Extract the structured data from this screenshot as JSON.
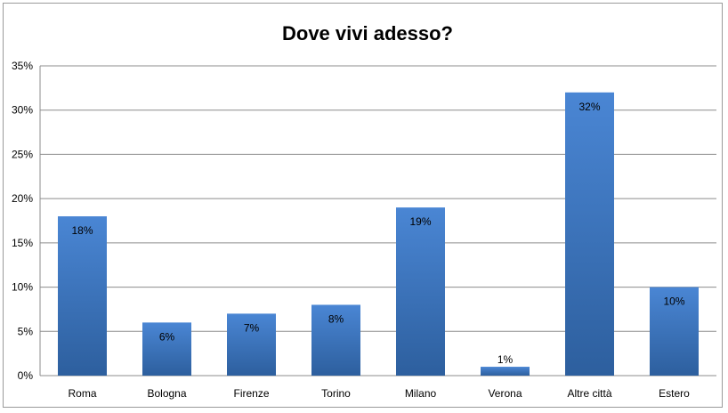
{
  "chart_data": {
    "type": "bar",
    "title": "Dove vivi adesso?",
    "xlabel": "",
    "ylabel": "",
    "categories": [
      "Roma",
      "Bologna",
      "Firenze",
      "Torino",
      "Milano",
      "Verona",
      "Altre città",
      "Estero"
    ],
    "values": [
      18,
      6,
      7,
      8,
      19,
      1,
      32,
      10
    ],
    "data_labels": [
      "18%",
      "6%",
      "7%",
      "8%",
      "19%",
      "1%",
      "32%",
      "10%"
    ],
    "ylim": [
      0,
      35
    ],
    "yticks": [
      0,
      5,
      10,
      15,
      20,
      25,
      30,
      35
    ],
    "ytick_labels": [
      "0%",
      "5%",
      "10%",
      "15%",
      "20%",
      "25%",
      "30%",
      "35%"
    ],
    "grid": true,
    "legend": "none",
    "colors": {
      "bar_top": "#4a86d4",
      "bar_bottom": "#2d5f9e",
      "grid": "#8c8c8c"
    }
  }
}
